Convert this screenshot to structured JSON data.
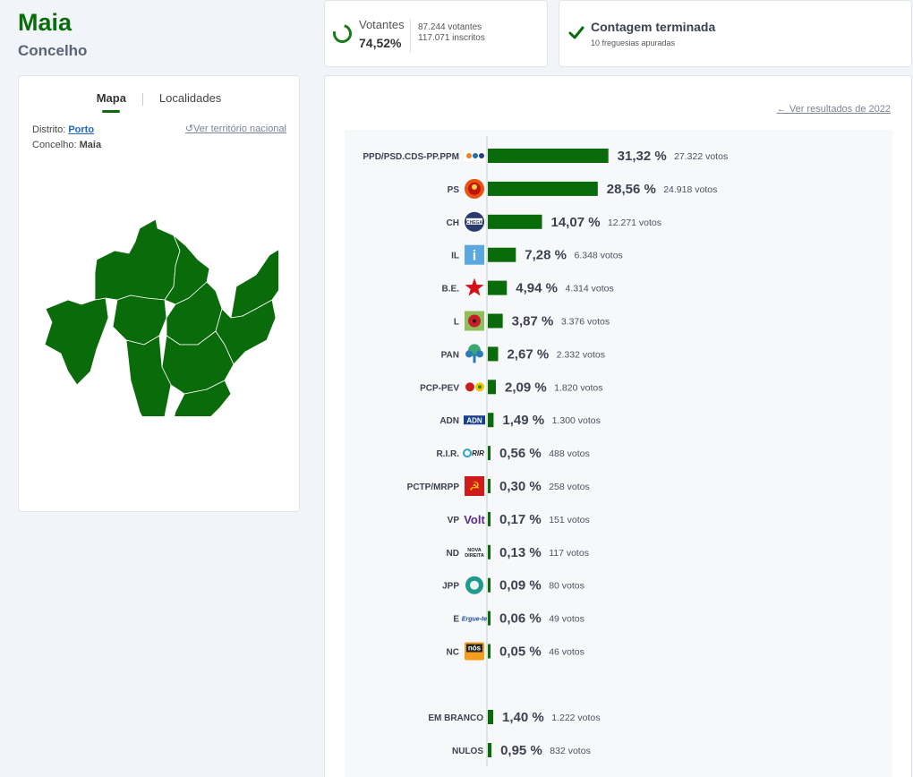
{
  "header": {
    "title": "Maia",
    "subtitle": "Concelho"
  },
  "map_panel": {
    "tab_map": "Mapa",
    "tab_places": "Localidades",
    "district_label": "Distrito:",
    "district_value": "Porto",
    "county_label": "Concelho:",
    "county_value": "Maia",
    "national_link": "Ver território nacional",
    "map_color": "#0a6b0a"
  },
  "voters": {
    "label": "Votantes",
    "percent": "74,52%",
    "voters_count": "87.244 votantes",
    "registered_count": "117.071 inscritos"
  },
  "count_status": {
    "title": "Contagem terminada",
    "subtitle": "10 freguesias apuradas"
  },
  "results": {
    "previous_link": "Ver resultados de 2022",
    "bar_color": "#0a6b0a",
    "parties": [
      {
        "name": "PPD/PSD.CDS-PP.PPM",
        "pct_value": 31.32,
        "pct": "31,32 %",
        "votes": "27.322 votos",
        "icon": "ad-coalition-logo"
      },
      {
        "name": "PS",
        "pct_value": 28.56,
        "pct": "28,56 %",
        "votes": "24.918 votos",
        "icon": "ps-logo"
      },
      {
        "name": "CH",
        "pct_value": 14.07,
        "pct": "14,07 %",
        "votes": "12.271 votos",
        "icon": "chega-logo"
      },
      {
        "name": "IL",
        "pct_value": 7.28,
        "pct": "7,28 %",
        "votes": "6.348 votos",
        "icon": "il-logo"
      },
      {
        "name": "B.E.",
        "pct_value": 4.94,
        "pct": "4,94 %",
        "votes": "4.314 votos",
        "icon": "be-logo"
      },
      {
        "name": "L",
        "pct_value": 3.87,
        "pct": "3,87 %",
        "votes": "3.376 votos",
        "icon": "livre-logo"
      },
      {
        "name": "PAN",
        "pct_value": 2.67,
        "pct": "2,67 %",
        "votes": "2.332 votos",
        "icon": "pan-logo"
      },
      {
        "name": "PCP-PEV",
        "pct_value": 2.09,
        "pct": "2,09 %",
        "votes": "1.820 votos",
        "icon": "cdu-logo"
      },
      {
        "name": "ADN",
        "pct_value": 1.49,
        "pct": "1,49 %",
        "votes": "1.300 votos",
        "icon": "adn-logo"
      },
      {
        "name": "R.I.R.",
        "pct_value": 0.56,
        "pct": "0,56 %",
        "votes": "488 votos",
        "icon": "rir-logo"
      },
      {
        "name": "PCTP/MRPP",
        "pct_value": 0.3,
        "pct": "0,30 %",
        "votes": "258 votos",
        "icon": "pctp-logo"
      },
      {
        "name": "VP",
        "pct_value": 0.17,
        "pct": "0,17 %",
        "votes": "151 votos",
        "icon": "volt-logo"
      },
      {
        "name": "ND",
        "pct_value": 0.13,
        "pct": "0,13 %",
        "votes": "117 votos",
        "icon": "nova-direita-logo"
      },
      {
        "name": "JPP",
        "pct_value": 0.09,
        "pct": "0,09 %",
        "votes": "80 votos",
        "icon": "jpp-logo"
      },
      {
        "name": "E",
        "pct_value": 0.06,
        "pct": "0,06 %",
        "votes": "49 votos",
        "icon": "ergue-te-logo"
      },
      {
        "name": "NC",
        "pct_value": 0.05,
        "pct": "0,05 %",
        "votes": "46 votos",
        "icon": "nos-cidadaos-logo"
      }
    ],
    "special": [
      {
        "name": "EM BRANCO",
        "pct_value": 1.4,
        "pct": "1,40 %",
        "votes": "1.222 votos"
      },
      {
        "name": "NULOS",
        "pct_value": 0.95,
        "pct": "0,95 %",
        "votes": "832 votos"
      }
    ],
    "logo_text": {
      "chega": "CHEGA",
      "il": "i",
      "adn": "ADN",
      "rir": "RIR",
      "pctp": "☭",
      "volt": "Volt",
      "nd_line1": "NOVA",
      "nd_line2": "DIREITA",
      "ergue": "Ergue-te",
      "nc": "nós"
    }
  }
}
